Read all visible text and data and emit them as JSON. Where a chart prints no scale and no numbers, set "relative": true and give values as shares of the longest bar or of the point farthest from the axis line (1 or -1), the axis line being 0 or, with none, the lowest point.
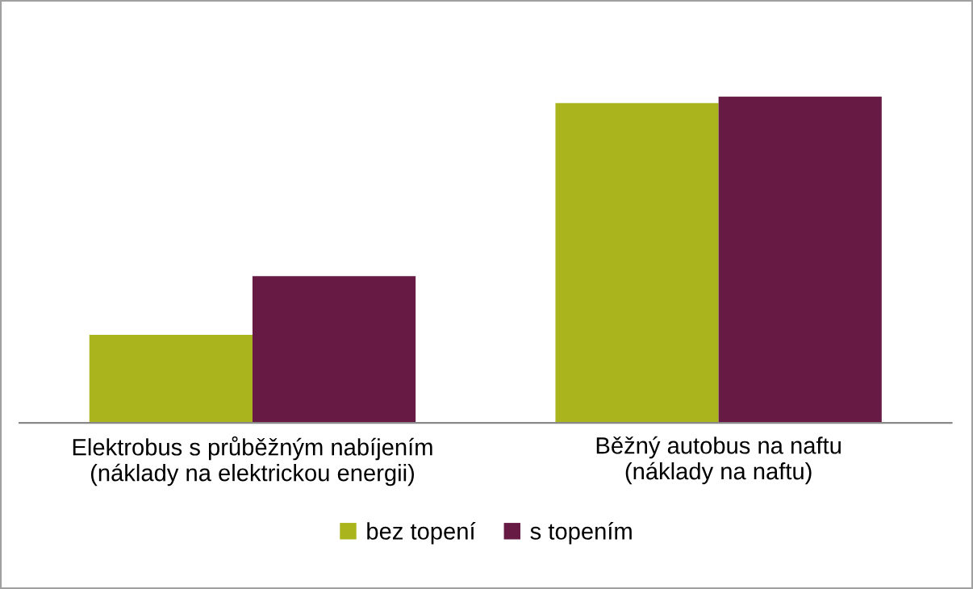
{
  "chart_data": {
    "type": "bar",
    "relative": true,
    "categories": [
      "Elektrobus s průběžným nabíjením\n(náklady na elektrickou energii)",
      "Běžný autobus na naftu\n(náklady na naftu)"
    ],
    "series": [
      {
        "name": "bez topení",
        "color": "#aab41c",
        "values": [
          0.27,
          0.98
        ]
      },
      {
        "name": "s topením",
        "color": "#661a44",
        "values": [
          0.45,
          1
        ]
      }
    ],
    "legend": "bottom",
    "grid": false
  }
}
